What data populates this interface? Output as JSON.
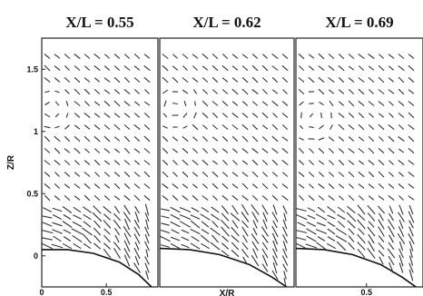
{
  "chart_data": [
    {
      "type": "vector-field",
      "title": "X/L = 0.55",
      "xlabel": "",
      "ylabel": "Z/R",
      "xlim": [
        0,
        0.9
      ],
      "ylim": [
        -0.25,
        1.75
      ],
      "xticks": [
        {
          "value": 0,
          "label": "0"
        },
        {
          "value": 0.5,
          "label": "0.5"
        }
      ],
      "yticks": [
        {
          "value": 0,
          "label": "0"
        },
        {
          "value": 0.5,
          "label": "0.5"
        },
        {
          "value": 1,
          "label": "1"
        },
        {
          "value": 1.5,
          "label": "1.5"
        }
      ],
      "surface_curve": [
        [
          0,
          0.05
        ],
        [
          0.2,
          0.05
        ],
        [
          0.4,
          0.02
        ],
        [
          0.6,
          -0.05
        ],
        [
          0.75,
          -0.15
        ],
        [
          0.85,
          -0.25
        ]
      ],
      "vortex_center": [
        0.07,
        1.18
      ]
    },
    {
      "type": "vector-field",
      "title": "X/L = 0.62",
      "xlabel": "X/R",
      "ylabel": "",
      "xlim": [
        0,
        0.9
      ],
      "ylim": [
        -0.25,
        1.75
      ],
      "xticks": [],
      "yticks": [],
      "surface_curve": [
        [
          0,
          0.06
        ],
        [
          0.2,
          0.05
        ],
        [
          0.4,
          0.01
        ],
        [
          0.6,
          -0.07
        ],
        [
          0.75,
          -0.17
        ],
        [
          0.85,
          -0.25
        ]
      ],
      "vortex_center": [
        0.1,
        1.2
      ]
    },
    {
      "type": "vector-field",
      "title": "X/L = 0.69",
      "xlabel": "",
      "ylabel": "",
      "xlim": [
        0,
        0.9
      ],
      "ylim": [
        -0.25,
        1.75
      ],
      "xticks": [
        {
          "value": 0.5,
          "label": "0.5"
        }
      ],
      "yticks": [],
      "surface_curve": [
        [
          0,
          0.06
        ],
        [
          0.2,
          0.05
        ],
        [
          0.4,
          0.01
        ],
        [
          0.6,
          -0.07
        ],
        [
          0.75,
          -0.17
        ],
        [
          0.85,
          -0.25
        ]
      ],
      "vortex_center": [
        0.12,
        1.12
      ]
    }
  ]
}
